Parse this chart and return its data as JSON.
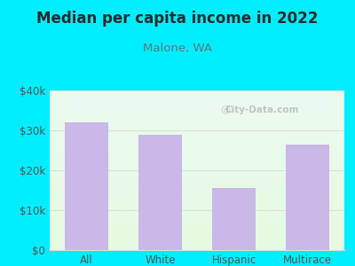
{
  "title": "Median per capita income in 2022",
  "subtitle": "Malone, WA",
  "categories": [
    "All",
    "White",
    "Hispanic",
    "Multirace"
  ],
  "values": [
    32000,
    29000,
    15500,
    26500
  ],
  "bar_color": "#c9b8e8",
  "background_outer": "#00eeff",
  "background_inner_top": "#e8f8ee",
  "background_inner_bottom": "#edfde8",
  "title_color": "#2a2a2a",
  "subtitle_color": "#5a7a7a",
  "tick_color": "#555555",
  "grid_color": "#dddddd",
  "ylim": [
    0,
    40000
  ],
  "yticks": [
    0,
    10000,
    20000,
    30000,
    40000
  ],
  "ytick_labels": [
    "$0",
    "$10k",
    "$20k",
    "$30k",
    "$40k"
  ],
  "watermark": "City-Data.com",
  "title_fontsize": 12,
  "subtitle_fontsize": 9.5,
  "tick_fontsize": 8.5
}
